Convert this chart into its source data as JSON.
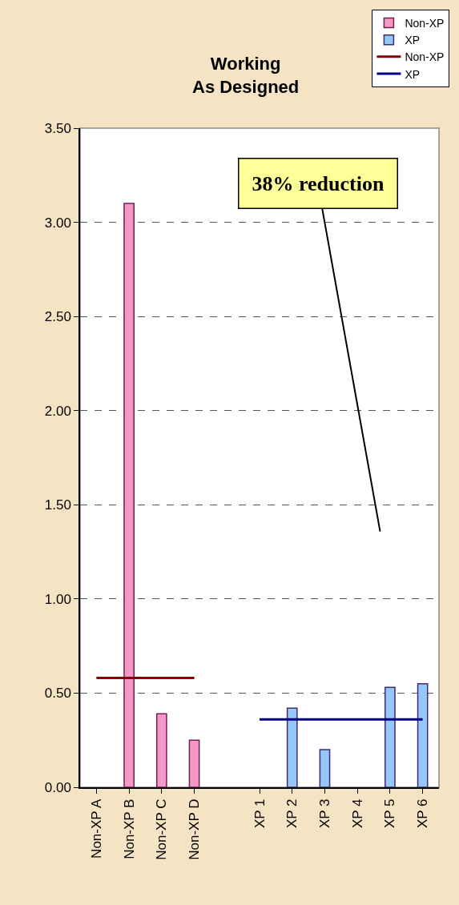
{
  "chart_data": {
    "type": "bar",
    "title": "Working\nAs Designed",
    "categories": [
      "Non-XP A",
      "Non-XP B",
      "Non-XP C",
      "Non-XP D",
      null,
      "XP 1",
      "XP 2",
      "XP 3",
      "XP 4",
      "XP 5",
      "XP 6"
    ],
    "series": [
      {
        "name": "Non-XP",
        "color": "#f598c6",
        "values": [
          null,
          3.1,
          0.39,
          0.25,
          null,
          null,
          null,
          null,
          null,
          null,
          null
        ]
      },
      {
        "name": "XP",
        "color": "#94c8f8",
        "values": [
          null,
          null,
          null,
          null,
          null,
          null,
          0.42,
          0.2,
          null,
          0.53,
          0.55
        ]
      },
      {
        "name": "Non-XP",
        "type": "line",
        "color": "#8b0000",
        "values": [
          0.58,
          0.58,
          0.58,
          0.58,
          null,
          null,
          null,
          null,
          null,
          null,
          null
        ]
      },
      {
        "name": "XP",
        "type": "line",
        "color": "#000080",
        "values": [
          null,
          null,
          null,
          null,
          null,
          0.36,
          0.36,
          0.36,
          0.36,
          0.36,
          0.36
        ]
      }
    ],
    "ylim": [
      0,
      3.5
    ],
    "yticks": [
      {
        "value": 0,
        "label": "0.00"
      },
      {
        "value": 0.5,
        "label": "0.50"
      },
      {
        "value": 1,
        "label": "1.00"
      },
      {
        "value": 1.5,
        "label": "1.50"
      },
      {
        "value": 2,
        "label": "2.00"
      },
      {
        "value": 2.5,
        "label": "2.50"
      },
      {
        "value": 3,
        "label": "3.00"
      },
      {
        "value": 3.5,
        "label": "3.50"
      }
    ],
    "grid": "y",
    "legend": "top right",
    "marker": "none",
    "line_style": "solid",
    "annotations": [
      "38% reduction"
    ]
  }
}
